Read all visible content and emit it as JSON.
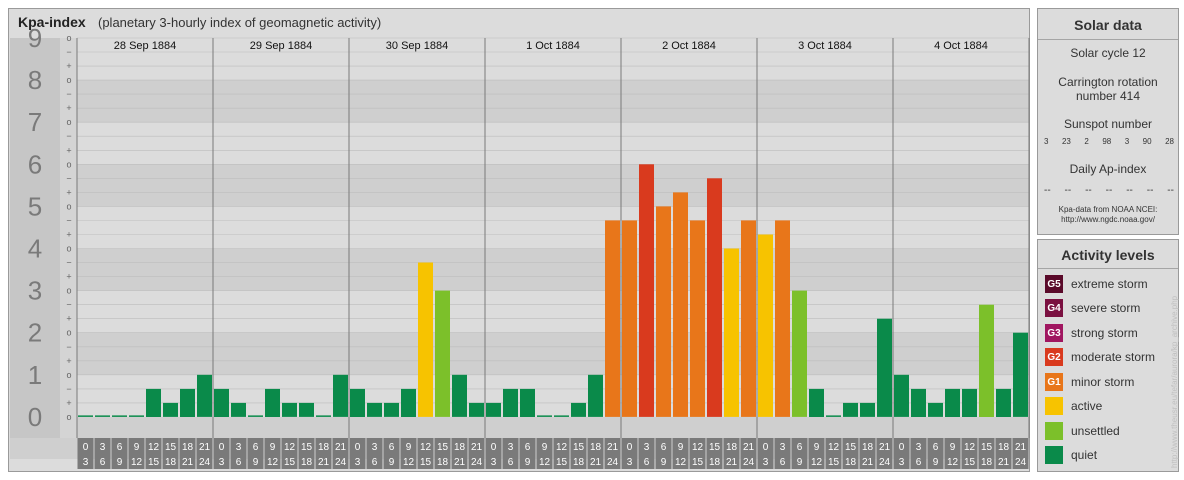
{
  "header": {
    "title": "Kpa-index",
    "subtitle": "(planetary 3-hourly index of geomagnetic activity)"
  },
  "chart_data": {
    "type": "bar",
    "days": [
      "28 Sep 1884",
      "29 Sep 1884",
      "30 Sep 1884",
      "1 Oct 1884",
      "2 Oct 1884",
      "3 Oct 1884",
      "4 Oct 1884"
    ],
    "interval_starts": [
      "0",
      "3",
      "6",
      "9",
      "12",
      "15",
      "18",
      "21"
    ],
    "interval_ends": [
      "3",
      "6",
      "9",
      "12",
      "15",
      "18",
      "21",
      "24"
    ],
    "ylim": [
      0,
      9
    ],
    "y_ticks": [
      "0",
      "1",
      "2",
      "3",
      "4",
      "5",
      "6",
      "7",
      "8",
      "9"
    ],
    "minor_tick_labels": [
      "o",
      "+",
      "−"
    ],
    "values": [
      [
        0,
        0,
        0,
        0,
        0.667,
        0.333,
        0.667,
        1.0
      ],
      [
        0.667,
        0.333,
        0,
        0.667,
        0.333,
        0.333,
        0,
        1.0
      ],
      [
        0.667,
        0.333,
        0.333,
        0.667,
        3.667,
        3.0,
        1.0,
        0.333
      ],
      [
        0.333,
        0.667,
        0.667,
        0,
        0,
        0.333,
        1.0,
        4.667
      ],
      [
        4.667,
        6.0,
        5.0,
        5.333,
        4.667,
        5.667,
        4.0,
        4.667
      ],
      [
        4.333,
        4.667,
        3.0,
        0.667,
        0,
        0.333,
        0.333,
        2.333
      ],
      [
        1.0,
        0.667,
        0.333,
        0.667,
        0.667,
        2.667,
        0.667,
        2.0
      ]
    ],
    "grid": true
  },
  "solar": {
    "title": "Solar data",
    "cycle": "Solar cycle 12",
    "carrington_line1": "Carrington rotation",
    "carrington_line2": "number 414",
    "sunspot_title": "Sunspot number",
    "sunspots": [
      "3",
      "23",
      "2",
      "98",
      "3",
      "90",
      "28"
    ],
    "ap_title": "Daily Ap-index",
    "ap_values": [
      "--",
      "--",
      "--",
      "--",
      "--",
      "--",
      "--"
    ],
    "source_line1": "Kpa-data from NOAA NCEI:",
    "source_line2": "http://www.ngdc.noaa.gov/"
  },
  "activity": {
    "title": "Activity levels",
    "levels": [
      {
        "code": "G5",
        "label": "extreme storm",
        "color": "#5a0a2a"
      },
      {
        "code": "G4",
        "label": "severe storm",
        "color": "#7a1040"
      },
      {
        "code": "G3",
        "label": "strong storm",
        "color": "#a01660"
      },
      {
        "code": "G2",
        "label": "moderate storm",
        "color": "#d93a1e"
      },
      {
        "code": "G1",
        "label": "minor storm",
        "color": "#e8761a"
      },
      {
        "code": "",
        "label": "active",
        "color": "#f7c300"
      },
      {
        "code": "",
        "label": "unsettled",
        "color": "#7cc02a"
      },
      {
        "code": "",
        "label": "quiet",
        "color": "#0a8a4a"
      }
    ]
  },
  "watermark": "http://www.theusr.eu/tefar/aurora/kp_archive.php"
}
